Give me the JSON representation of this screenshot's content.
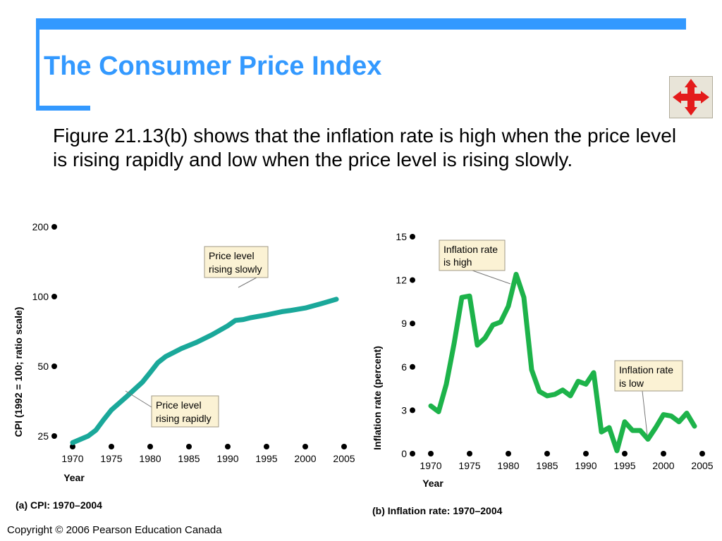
{
  "slide": {
    "title": "The Consumer Price Index",
    "body": "Figure 21.13(b) shows that the inflation rate is high when the price level is rising rapidly and low when the price level is rising slowly.",
    "copyright": "Copyright © 2006 Pearson Education Canada",
    "nav_icon": "four-way-arrows-icon"
  },
  "colors": {
    "accent": "#3399ff",
    "cpi_line": "#1aa89a",
    "inflation_line": "#1db34a",
    "annotation_bg": "#fbf2d4"
  },
  "chart_data": [
    {
      "type": "line",
      "caption": "(a) CPI: 1970–2004",
      "xlabel": "Year",
      "ylabel": "CPI (1992 = 100; ratio scale)",
      "yscale": "log",
      "xlim": [
        1970,
        2005
      ],
      "ylim": [
        25,
        200
      ],
      "x_ticks": [
        1970,
        1975,
        1980,
        1985,
        1990,
        1995,
        2000,
        2005
      ],
      "y_ticks": [
        25,
        50,
        100,
        200
      ],
      "series": [
        {
          "x": [
            1970,
            1972,
            1973,
            1974,
            1975,
            1977,
            1979,
            1980,
            1981,
            1982,
            1984,
            1986,
            1988,
            1990,
            1991,
            1992,
            1993,
            1995,
            1997,
            1998,
            2000,
            2002,
            2004
          ],
          "values": [
            23.4,
            25.0,
            26.5,
            29.4,
            32.4,
            37.1,
            42.7,
            47.0,
            51.9,
            55.1,
            59.6,
            63.5,
            68.5,
            74.8,
            78.9,
            79.6,
            81.1,
            83.3,
            86.1,
            87.0,
            89.3,
            93.1,
            97.4
          ]
        }
      ],
      "annotations": [
        {
          "lines": [
            "Price level",
            "rising slowly"
          ]
        },
        {
          "lines": [
            "Price level",
            "rising rapidly"
          ]
        }
      ]
    },
    {
      "type": "line",
      "caption": "(b) Inflation rate: 1970–2004",
      "xlabel": "Year",
      "ylabel": "Inflation rate (percent)",
      "xlim": [
        1970,
        2005
      ],
      "ylim": [
        0,
        15
      ],
      "x_ticks": [
        1970,
        1975,
        1980,
        1985,
        1990,
        1995,
        2000,
        2005
      ],
      "y_ticks": [
        0,
        3,
        6,
        9,
        12,
        15
      ],
      "series": [
        {
          "x": [
            1970,
            1971,
            1972,
            1973,
            1974,
            1975,
            1976,
            1977,
            1978,
            1979,
            1980,
            1981,
            1982,
            1983,
            1984,
            1985,
            1986,
            1987,
            1988,
            1989,
            1990,
            1991,
            1992,
            1993,
            1994,
            1995,
            1996,
            1997,
            1998,
            1999,
            2000,
            2001,
            2002,
            2003,
            2004
          ],
          "values": [
            3.3,
            2.9,
            4.8,
            7.6,
            10.8,
            10.9,
            7.5,
            8.0,
            8.9,
            9.1,
            10.2,
            12.4,
            10.8,
            5.8,
            4.3,
            4.0,
            4.1,
            4.4,
            4.0,
            5.0,
            4.8,
            5.6,
            1.5,
            1.8,
            0.2,
            2.2,
            1.6,
            1.6,
            1.0,
            1.8,
            2.7,
            2.6,
            2.2,
            2.8,
            1.9
          ]
        }
      ],
      "annotations": [
        {
          "lines": [
            "Inflation rate",
            "is high"
          ]
        },
        {
          "lines": [
            "Inflation rate",
            "is low"
          ]
        }
      ]
    }
  ]
}
